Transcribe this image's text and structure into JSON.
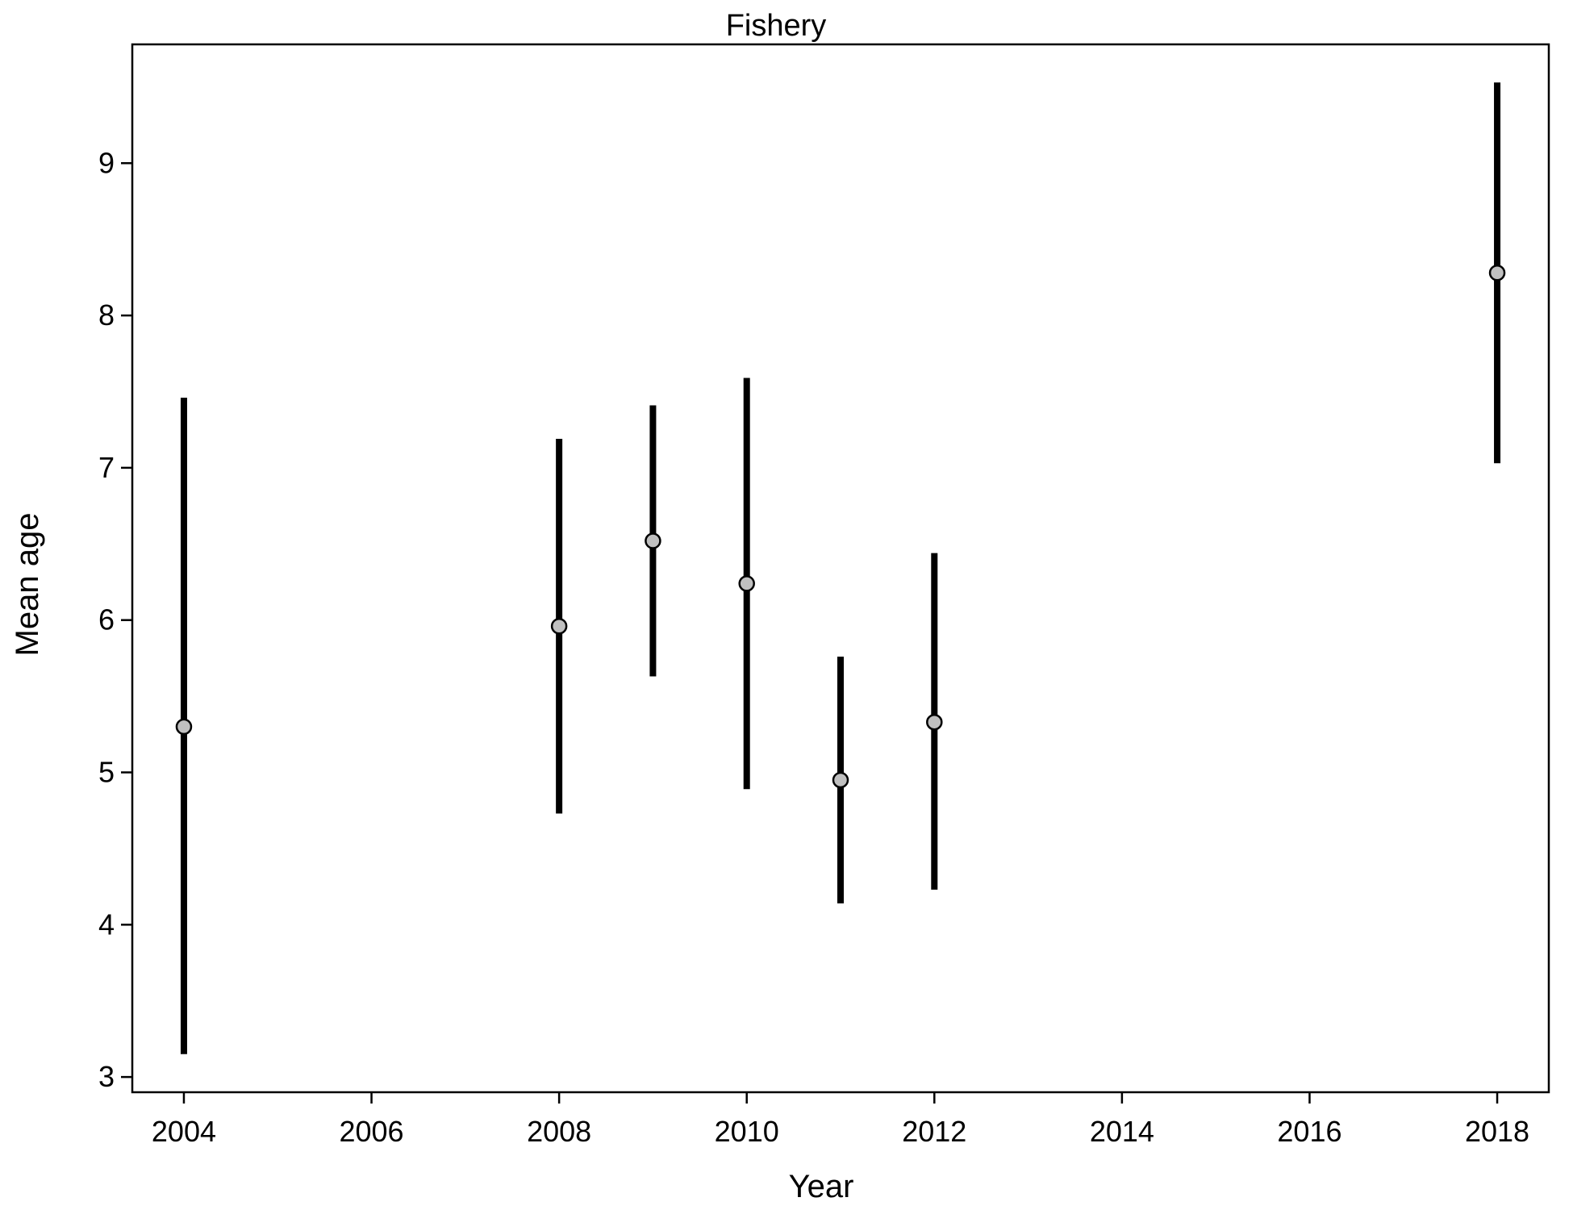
{
  "chart_data": {
    "type": "scatter",
    "title": "Fishery",
    "xlabel": "Year",
    "ylabel": "Mean age",
    "xlim": [
      2003.45,
      2018.55
    ],
    "ylim": [
      2.9,
      9.78
    ],
    "xticks": [
      2004,
      2006,
      2008,
      2010,
      2012,
      2014,
      2016,
      2018
    ],
    "yticks": [
      3,
      4,
      5,
      6,
      7,
      8,
      9
    ],
    "grid": false,
    "legend": "none",
    "series": [
      {
        "x": [
          2004,
          2008,
          2009,
          2010,
          2011,
          2012,
          2018
        ],
        "y": [
          5.3,
          5.96,
          6.52,
          6.24,
          4.95,
          5.33,
          8.28
        ],
        "lower": [
          3.15,
          4.73,
          5.63,
          4.89,
          4.14,
          4.23,
          7.03
        ],
        "upper": [
          7.46,
          7.19,
          7.41,
          7.59,
          5.76,
          6.44,
          9.53
        ]
      }
    ],
    "colors": {
      "point_fill": "#c0c0c0",
      "point_stroke": "#000000",
      "bar": "#000000",
      "axis": "#000000"
    }
  }
}
